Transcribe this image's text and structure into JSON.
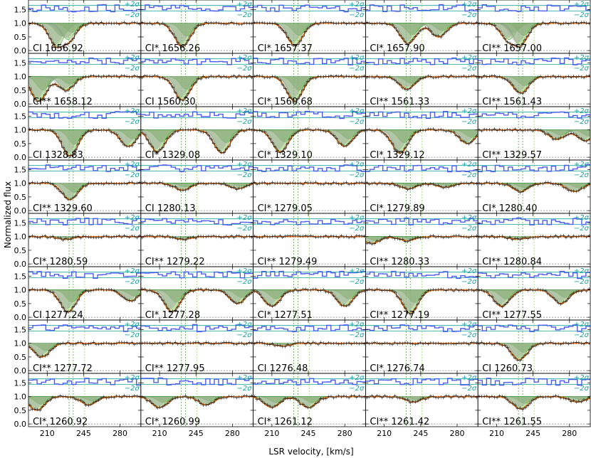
{
  "chart_data": {
    "type": "line",
    "xlabel": "LSR velocity, [km/s]",
    "ylabel": "Normalized flux",
    "x_ticks": [
      "210",
      "245",
      "280"
    ],
    "y_ticks": [
      "0.0",
      "0.5",
      "1.0",
      "1.5"
    ],
    "xlim": [
      192,
      300
    ],
    "ylim": [
      -0.1,
      1.85
    ],
    "sigma_labels": [
      "+2σ",
      "−2σ"
    ],
    "component_velocities": [
      231,
      235,
      246
    ],
    "colors": {
      "data": "#111111",
      "model": "#f07d1a",
      "components": "#6cc24a",
      "residual": "#4c5cf0",
      "sigma": "#17a3a3",
      "grey": "#a0a0a0"
    },
    "panels": [
      {
        "label": "CI 1656.92",
        "absorption": [
          {
            "v": 220,
            "d": 0.85
          },
          {
            "v": 230,
            "d": 0.6
          }
        ]
      },
      {
        "label": "CI* 1656.26",
        "absorption": [
          {
            "v": 232,
            "d": 0.85
          }
        ]
      },
      {
        "label": "CI* 1657.37",
        "absorption": [
          {
            "v": 232,
            "d": 0.8
          }
        ]
      },
      {
        "label": "CI* 1657.90",
        "absorption": [
          {
            "v": 233,
            "d": 0.75
          },
          {
            "v": 262,
            "d": 0.5
          }
        ]
      },
      {
        "label": "CI** 1657.00",
        "absorption": [
          {
            "v": 222,
            "d": 0.6
          },
          {
            "v": 232,
            "d": 0.8
          }
        ]
      },
      {
        "label": "CI** 1658.12",
        "absorption": [
          {
            "v": 202,
            "d": 0.9
          },
          {
            "v": 228,
            "d": 0.5
          }
        ]
      },
      {
        "label": "CI 1560.30",
        "absorption": [
          {
            "v": 232,
            "d": 0.85
          }
        ]
      },
      {
        "label": "CI* 1560.68",
        "absorption": [
          {
            "v": 232,
            "d": 0.9
          }
        ]
      },
      {
        "label": "CI** 1561.33",
        "absorption": [
          {
            "v": 232,
            "d": 0.45
          }
        ]
      },
      {
        "label": "CI** 1561.43",
        "absorption": [
          {
            "v": 233,
            "d": 0.6
          }
        ]
      },
      {
        "label": "CI 1328.83",
        "absorption": [
          {
            "v": 232,
            "d": 0.95
          },
          {
            "v": 288,
            "d": 0.6
          }
        ]
      },
      {
        "label": "CI* 1329.08",
        "absorption": [
          {
            "v": 208,
            "d": 0.8
          },
          {
            "v": 270,
            "d": 0.85
          }
        ]
      },
      {
        "label": "CI* 1329.10",
        "absorption": [
          {
            "v": 218,
            "d": 0.8
          },
          {
            "v": 280,
            "d": 0.6
          }
        ]
      },
      {
        "label": "CI* 1329.12",
        "absorption": [
          {
            "v": 225,
            "d": 0.85
          },
          {
            "v": 290,
            "d": 0.5
          }
        ]
      },
      {
        "label": "CI** 1329.57",
        "absorption": [
          {
            "v": 268,
            "d": 0.35
          },
          {
            "v": 295,
            "d": 0.4
          }
        ]
      },
      {
        "label": "CI** 1329.60",
        "absorption": [
          {
            "v": 232,
            "d": 0.6
          }
        ]
      },
      {
        "label": "CI 1280.13",
        "absorption": [
          {
            "v": 232,
            "d": 0.25
          },
          {
            "v": 285,
            "d": 0.2
          }
        ]
      },
      {
        "label": "CI* 1279.05",
        "absorption": []
      },
      {
        "label": "CI* 1279.89",
        "absorption": [
          {
            "v": 233,
            "d": 0.2
          },
          {
            "v": 268,
            "d": 0.15
          }
        ]
      },
      {
        "label": "CI* 1280.40",
        "absorption": [
          {
            "v": 233,
            "d": 0.3
          },
          {
            "v": 285,
            "d": 0.3
          }
        ]
      },
      {
        "label": "CI* 1280.59",
        "absorption": [
          {
            "v": 228,
            "d": 0.1
          }
        ]
      },
      {
        "label": "CI** 1279.22",
        "absorption": [
          {
            "v": 233,
            "d": 0.1
          }
        ]
      },
      {
        "label": "CI** 1279.49",
        "absorption": []
      },
      {
        "label": "CI** 1280.33",
        "absorption": [
          {
            "v": 198,
            "d": 0.25
          },
          {
            "v": 232,
            "d": 0.15
          }
        ]
      },
      {
        "label": "CI** 1280.84",
        "absorption": [
          {
            "v": 230,
            "d": 0.1
          }
        ]
      },
      {
        "label": "CI 1277.24",
        "absorption": [
          {
            "v": 230,
            "d": 0.8
          },
          {
            "v": 290,
            "d": 0.4
          }
        ]
      },
      {
        "label": "CI* 1277.28",
        "absorption": [
          {
            "v": 222,
            "d": 0.8
          },
          {
            "v": 285,
            "d": 0.5
          }
        ]
      },
      {
        "label": "CI* 1277.51",
        "absorption": [
          {
            "v": 210,
            "d": 0.6
          },
          {
            "v": 280,
            "d": 0.6
          }
        ]
      },
      {
        "label": "CI** 1277.19",
        "absorption": [
          {
            "v": 235,
            "d": 0.85
          }
        ]
      },
      {
        "label": "CI** 1277.55",
        "absorption": [
          {
            "v": 215,
            "d": 0.6
          },
          {
            "v": 272,
            "d": 0.5
          }
        ]
      },
      {
        "label": "CI** 1277.72",
        "absorption": [
          {
            "v": 205,
            "d": 0.5
          }
        ]
      },
      {
        "label": "CI** 1277.95",
        "absorption": []
      },
      {
        "label": "CI 1276.48",
        "absorption": [
          {
            "v": 220,
            "d": 0.1
          }
        ]
      },
      {
        "label": "CI* 1276.74",
        "absorption": []
      },
      {
        "label": "CI 1260.73",
        "absorption": [
          {
            "v": 232,
            "d": 0.6
          }
        ]
      },
      {
        "label": "CI* 1260.92",
        "absorption": [
          {
            "v": 200,
            "d": 0.5
          },
          {
            "v": 250,
            "d": 0.3
          }
        ]
      },
      {
        "label": "CI* 1260.99",
        "absorption": [
          {
            "v": 210,
            "d": 0.4
          },
          {
            "v": 255,
            "d": 0.3
          }
        ]
      },
      {
        "label": "CI* 1261.12",
        "absorption": [
          {
            "v": 210,
            "d": 0.4
          },
          {
            "v": 245,
            "d": 0.4
          }
        ]
      },
      {
        "label": "CI** 1261.42",
        "absorption": [
          {
            "v": 238,
            "d": 0.2
          }
        ]
      },
      {
        "label": "CI** 1261.55",
        "absorption": [
          {
            "v": 233,
            "d": 0.45
          },
          {
            "v": 288,
            "d": 0.2
          }
        ]
      }
    ]
  }
}
